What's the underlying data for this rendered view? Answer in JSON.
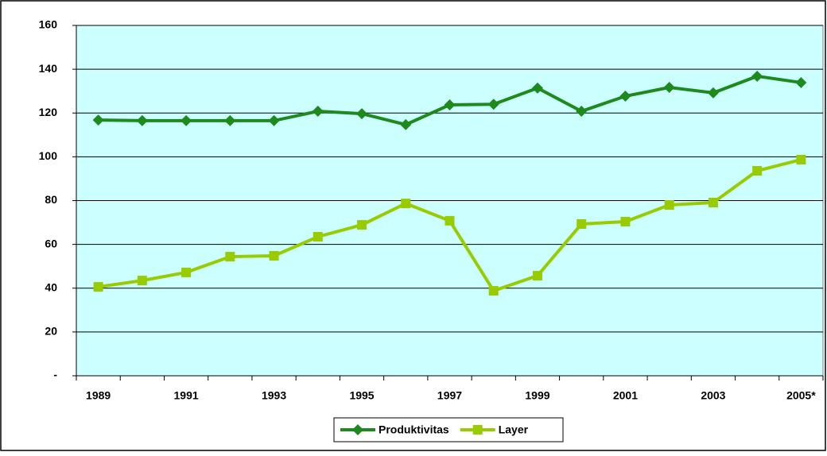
{
  "chart_data": {
    "type": "line",
    "categories": [
      "1989",
      null,
      "1991",
      null,
      "1993",
      null,
      "1995",
      null,
      "1997",
      null,
      "1999",
      null,
      "2001",
      null,
      "2003",
      null,
      "2005*"
    ],
    "series": [
      {
        "name": "Produktivitas",
        "color": "#1e8a1e",
        "marker": "diamond",
        "values": [
          116.8,
          116.5,
          116.5,
          116.5,
          116.5,
          120.8,
          119.7,
          114.7,
          123.7,
          124,
          131.4,
          120.8,
          127.7,
          131.7,
          129.2,
          136.8,
          133.9
        ]
      },
      {
        "name": "Layer",
        "color": "#99cc00",
        "marker": "square",
        "values": [
          40.6,
          43.5,
          47.2,
          54.4,
          54.8,
          63.5,
          68.9,
          78.7,
          70.8,
          38.8,
          45.7,
          69.3,
          70.4,
          78,
          79.1,
          93.6,
          98.7
        ]
      }
    ],
    "ylim": [
      0,
      160
    ],
    "yticks": [
      {
        "value": 0,
        "label": "-"
      },
      20,
      40,
      60,
      80,
      100,
      120,
      140,
      160
    ],
    "grid": true,
    "legend": "bottom"
  }
}
